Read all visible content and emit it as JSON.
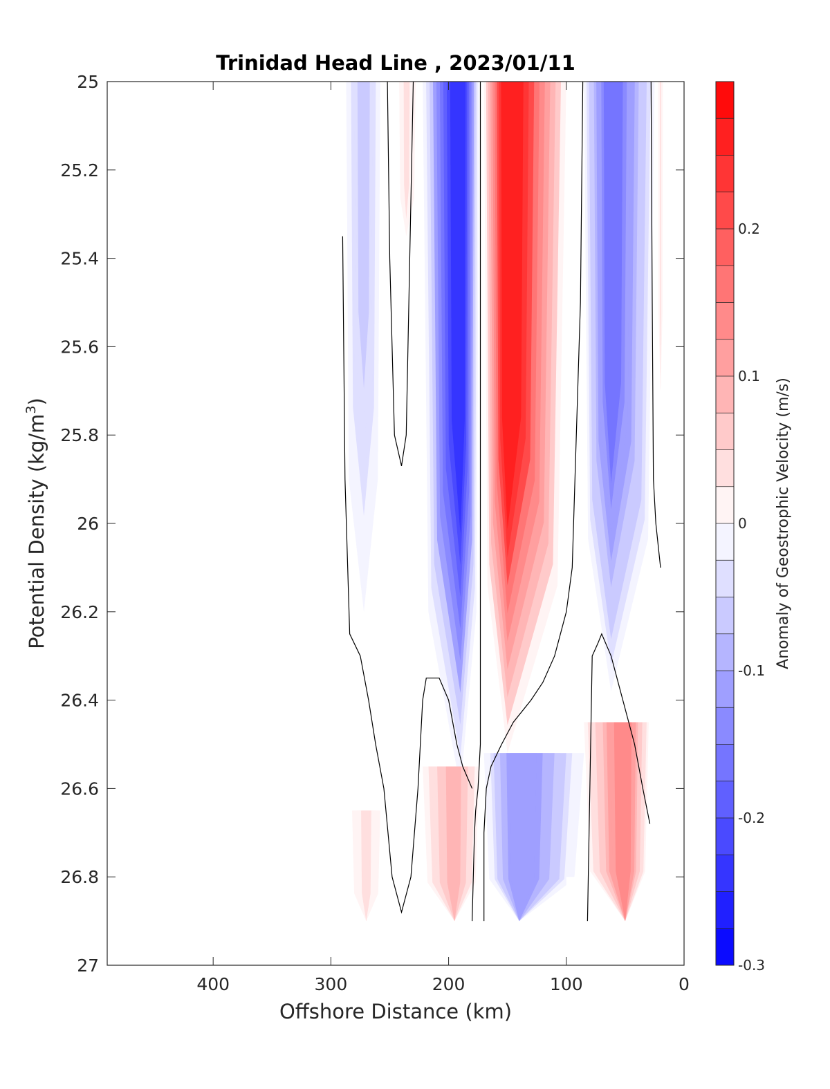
{
  "chart_data": {
    "type": "heatmap",
    "title": "Trinidad Head Line , 2023/01/11",
    "xlabel": "Offshore Distance (km)",
    "ylabel": "Potential Density (kg/m",
    "ylabel_superscript": "3",
    "ylabel_suffix": ")",
    "xlim": [
      490,
      0
    ],
    "ylim": [
      25,
      27
    ],
    "x_reversed": true,
    "y_reversed": true,
    "x_ticks": [
      400,
      300,
      200,
      100,
      0
    ],
    "x_tick_labels": [
      "400",
      "300",
      "200",
      "100",
      "0"
    ],
    "y_ticks": [
      25,
      25.2,
      25.4,
      25.6,
      25.8,
      26,
      26.2,
      26.4,
      26.6,
      26.8,
      27
    ],
    "y_tick_labels": [
      "25",
      "25.2",
      "25.4",
      "25.6",
      "25.8",
      "26",
      "26.2",
      "26.4",
      "26.6",
      "26.8",
      "27"
    ],
    "colorbar": {
      "label": "Anomaly of Geostrophic Velocity (m/s)",
      "range": [
        -0.3,
        0.3
      ],
      "levels": 24,
      "ticks": [
        -0.3,
        -0.2,
        -0.1,
        0,
        0.1,
        0.2
      ],
      "tick_labels": [
        "-0.3",
        "-0.2",
        "-0.1",
        "0",
        "0.1",
        "0.2"
      ],
      "negative_color": "#0000ff",
      "positive_color": "#ff0000",
      "zero_color": "#ffffff"
    },
    "grid": false,
    "features": [
      {
        "kind": "band",
        "x_left": 287,
        "x_right": 258,
        "y_top": 25,
        "y_bottom": 26.2,
        "peak": -0.07,
        "peak_x": 272,
        "peak_y_bottom": 25.55
      },
      {
        "kind": "band",
        "x_left": 242,
        "x_right": 228,
        "y_top": 25,
        "y_bottom": 25.35,
        "peak": 0.035,
        "peak_x": 236,
        "peak_y_bottom": 25.3
      },
      {
        "kind": "band",
        "x_left": 222,
        "x_right": 174,
        "y_top": 25,
        "y_bottom": 26.6,
        "peak": -0.26,
        "peak_x": 190,
        "peak_y_bottom": 25.95
      },
      {
        "kind": "band",
        "x_left": 170,
        "x_right": 100,
        "y_top": 25,
        "y_bottom": 26.52,
        "peak": 0.29,
        "peak_x": 150,
        "peak_y_bottom": 25.95
      },
      {
        "kind": "band",
        "x_left": 85,
        "x_right": 25,
        "y_top": 25,
        "y_bottom": 26.38,
        "peak": -0.18,
        "peak_x": 62,
        "peak_y_bottom": 25.85
      },
      {
        "kind": "band",
        "x_left": 22,
        "x_right": 18,
        "y_top": 25,
        "y_bottom": 25.7,
        "peak": 0.03,
        "peak_x": 20,
        "peak_y_bottom": 25.7
      },
      {
        "kind": "band",
        "x_left": 282,
        "x_right": 258,
        "y_top": 26.65,
        "y_bottom": 26.9,
        "peak": 0.035,
        "peak_x": 270,
        "peak_y_bottom": 26.9
      },
      {
        "kind": "band",
        "x_left": 222,
        "x_right": 174,
        "y_top": 26.55,
        "y_bottom": 26.9,
        "peak": 0.09,
        "peak_x": 195,
        "peak_y_bottom": 26.9
      },
      {
        "kind": "band",
        "x_left": 170,
        "x_right": 85,
        "y_top": 26.52,
        "y_bottom": 26.9,
        "peak": -0.13,
        "peak_x": 140,
        "peak_y_bottom": 26.9
      },
      {
        "kind": "band",
        "x_left": 85,
        "x_right": 30,
        "y_top": 26.45,
        "y_bottom": 26.9,
        "peak": 0.15,
        "peak_x": 50,
        "peak_y_bottom": 26.9
      }
    ],
    "zero_contours": [
      {
        "x": [
          290,
          288,
          284,
          275,
          268,
          262,
          255,
          248,
          240,
          232,
          226,
          222,
          219,
          214,
          208,
          200,
          193,
          188,
          180
        ],
        "y": [
          25.35,
          25.9,
          26.25,
          26.3,
          26.4,
          26.5,
          26.6,
          26.8,
          26.88,
          26.8,
          26.6,
          26.4,
          26.35,
          26.35,
          26.35,
          26.4,
          26.5,
          26.55,
          26.6
        ]
      },
      {
        "x": [
          252,
          250,
          246,
          240,
          236,
          230
        ],
        "y": [
          25.0,
          25.4,
          25.8,
          25.87,
          25.8,
          25.0
        ]
      },
      {
        "x": [
          173,
          173,
          173,
          175,
          177,
          178,
          180
        ],
        "y": [
          25.0,
          25.8,
          26.5,
          26.6,
          26.65,
          26.7,
          26.9
        ]
      },
      {
        "x": [
          170,
          170,
          168,
          164,
          155,
          145,
          130,
          120,
          110,
          100,
          95,
          88,
          86,
          86
        ],
        "y": [
          26.9,
          26.7,
          26.6,
          26.55,
          26.5,
          26.45,
          26.4,
          26.36,
          26.3,
          26.2,
          26.1,
          25.5,
          25.0,
          25.0
        ]
      },
      {
        "x": [
          82,
          78,
          73,
          70,
          62,
          52,
          42,
          35,
          29
        ],
        "y": [
          26.9,
          26.3,
          26.27,
          26.25,
          26.3,
          26.4,
          26.5,
          26.6,
          26.68
        ]
      },
      {
        "x": [
          28,
          27,
          26,
          24,
          22,
          20
        ],
        "y": [
          25.0,
          25.5,
          25.9,
          26.0,
          26.05,
          26.1
        ]
      }
    ],
    "masked_region": {
      "x": [
        100,
        85
      ],
      "y": [
        26.8,
        26.9
      ]
    }
  }
}
